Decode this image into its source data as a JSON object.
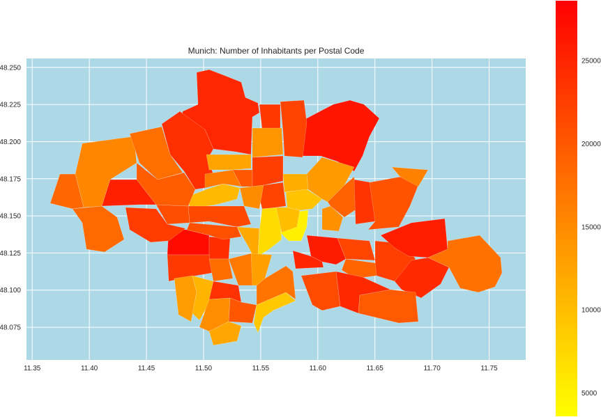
{
  "chart_data": {
    "type": "choropleth",
    "title": "Munich: Number of Inhabitants per Postal Code",
    "xlabel": "",
    "ylabel": "",
    "xlim": [
      11.345,
      11.782
    ],
    "ylim": [
      48.053,
      48.256
    ],
    "x_ticks": [
      "11.35",
      "11.40",
      "11.45",
      "11.50",
      "11.55",
      "11.60",
      "11.65",
      "11.70",
      "11.75"
    ],
    "y_ticks": [
      "48.075",
      "48.100",
      "48.125",
      "48.150",
      "48.175",
      "48.200",
      "48.225",
      "48.250"
    ],
    "grid": true,
    "background_color": "#add8e6",
    "colormap": "autumn_r",
    "colorbar": {
      "range": [
        3600,
        28600
      ],
      "ticks": [
        "5000",
        "10000",
        "15000",
        "20000",
        "25000"
      ]
    },
    "regions": [
      {
        "value": 24800
      },
      {
        "value": 24000
      },
      {
        "value": 23200
      },
      {
        "value": 26500
      },
      {
        "value": 22000
      },
      {
        "value": 15500
      },
      {
        "value": 18500
      },
      {
        "value": 17800
      },
      {
        "value": 18200
      },
      {
        "value": 14000
      },
      {
        "value": 25500
      },
      {
        "value": 21000
      },
      {
        "value": 10500
      },
      {
        "value": 19500
      },
      {
        "value": 12500
      },
      {
        "value": 16500
      },
      {
        "value": 20000
      },
      {
        "value": 22500
      },
      {
        "value": 11500
      },
      {
        "value": 9500
      },
      {
        "value": 13500
      },
      {
        "value": 7000
      },
      {
        "value": 5000
      },
      {
        "value": 10000
      },
      {
        "value": 22000
      },
      {
        "value": 15000
      },
      {
        "value": 21500
      },
      {
        "value": 14500
      },
      {
        "value": 19000
      },
      {
        "value": 23500
      },
      {
        "value": 20500
      },
      {
        "value": 16000
      },
      {
        "value": 27500
      },
      {
        "value": 22800
      },
      {
        "value": 24200
      },
      {
        "value": 20800
      },
      {
        "value": 12000
      },
      {
        "value": 16800
      },
      {
        "value": 13000
      },
      {
        "value": 23000
      },
      {
        "value": 18000
      },
      {
        "value": 26000
      },
      {
        "value": 25000
      },
      {
        "value": 21800
      },
      {
        "value": 18800
      },
      {
        "value": 22400
      },
      {
        "value": 25800
      },
      {
        "value": 24500
      },
      {
        "value": 17500
      },
      {
        "value": 13200
      },
      {
        "value": 11000
      },
      {
        "value": 14800
      },
      {
        "value": 23800
      },
      {
        "value": 20200
      },
      {
        "value": 12200
      },
      {
        "value": 9000
      },
      {
        "value": 17200
      },
      {
        "value": 21200
      },
      {
        "value": 19800
      },
      {
        "value": 24600
      }
    ]
  }
}
